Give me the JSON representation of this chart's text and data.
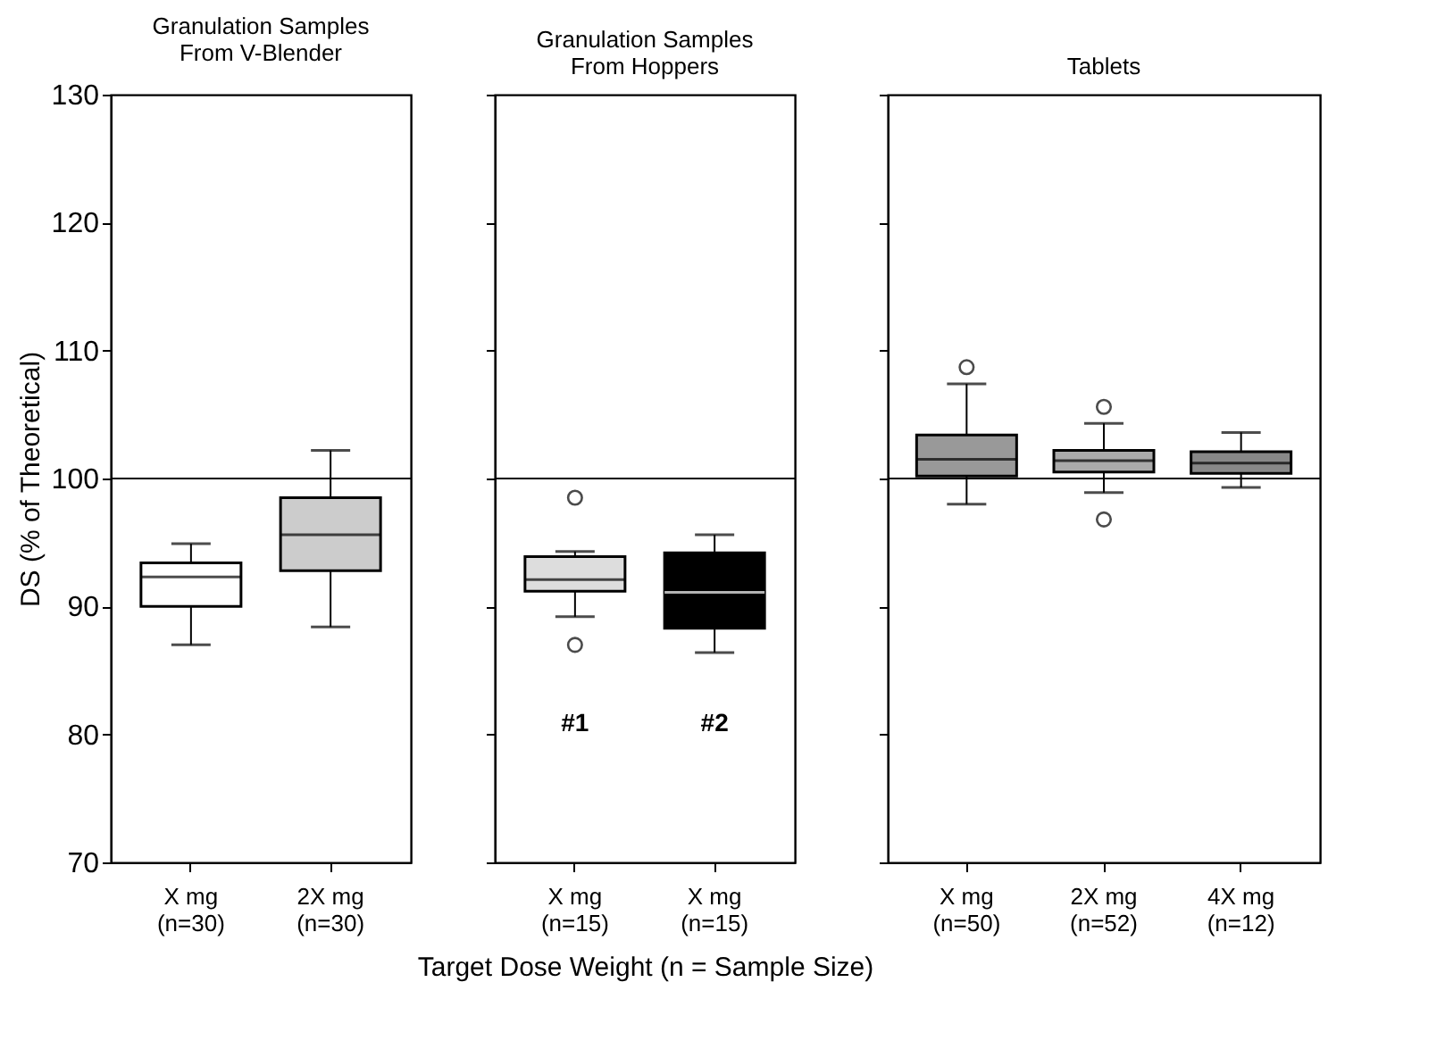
{
  "chart_data": [
    {
      "type": "box",
      "title": "Granulation Samples\nFrom V-Blender",
      "ylabel": "DS (% of Theoretical)",
      "categories": [
        "X mg\n(n=30)",
        "2X mg\n(n=30)"
      ],
      "boxes": [
        {
          "low": 87.0,
          "q1": 90.0,
          "median": 92.3,
          "q3": 93.4,
          "high": 94.9
        },
        {
          "low": 88.4,
          "q1": 92.8,
          "median": 95.6,
          "q3": 98.5,
          "high": 102.2
        }
      ],
      "colors": [
        "#ffffff",
        "#cccccc"
      ],
      "ylim": [
        70,
        130
      ],
      "yticks": [
        70,
        80,
        90,
        100,
        110,
        120,
        130
      ],
      "ref_lines": [
        {
          "axis": "y",
          "value": 100
        }
      ]
    },
    {
      "type": "box",
      "title": "Granulation Samples\nFrom Hoppers",
      "xlabel": "Target Dose Weight (n = Sample Size)",
      "categories": [
        "X mg\n(n=15)",
        "X mg\n(n=15)"
      ],
      "boxes": [
        {
          "low": 89.2,
          "q1": 91.2,
          "median": 92.1,
          "q3": 93.9,
          "high": 94.3,
          "outliers": [
            98.5,
            87.0
          ]
        },
        {
          "low": 86.4,
          "q1": 88.3,
          "median": 91.1,
          "q3": 94.2,
          "high": 95.6
        }
      ],
      "colors": [
        "#dddddd",
        "#000000"
      ],
      "ylim": [
        70,
        130
      ],
      "yticks": [
        70,
        80,
        90,
        100,
        110,
        120,
        130
      ],
      "tick_labels": "x",
      "annotations": [
        "#1",
        "#2"
      ],
      "ref_lines": [
        {
          "axis": "y",
          "value": 100
        }
      ]
    },
    {
      "type": "box",
      "title": "Tablets",
      "categories": [
        "X mg\n(n=50)",
        "2X mg\n(n=52)",
        "4X mg\n(n=12)"
      ],
      "boxes": [
        {
          "low": 98.0,
          "q1": 100.2,
          "median": 101.5,
          "q3": 103.4,
          "high": 107.4,
          "outliers": [
            108.7
          ]
        },
        {
          "low": 98.9,
          "q1": 100.5,
          "median": 101.4,
          "q3": 102.2,
          "high": 104.3,
          "outliers": [
            105.6,
            96.8
          ]
        },
        {
          "low": 99.3,
          "q1": 100.4,
          "median": 101.2,
          "q3": 102.1,
          "high": 103.6
        }
      ],
      "colors": [
        "#999999",
        "#aaaaaa",
        "#888888"
      ],
      "ylim": [
        70,
        130
      ],
      "yticks": [
        70,
        80,
        90,
        100,
        110,
        120,
        130
      ],
      "tick_labels": "x",
      "ref_lines": [
        {
          "axis": "y",
          "value": 100
        }
      ]
    }
  ]
}
